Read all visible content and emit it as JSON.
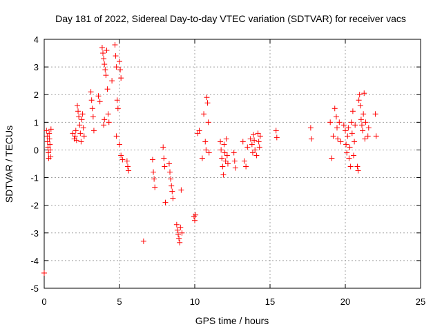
{
  "chart_data": {
    "type": "scatter",
    "title": "Day 181 of 2022, Sidereal Day-to-day VTEC variation (SDTVAR) for receiver vacs",
    "xlabel": "GPS time / hours",
    "ylabel": "SDTVAR / TECUs",
    "xlim": [
      0,
      25
    ],
    "ylim": [
      -5,
      4
    ],
    "xticks": [
      0,
      5,
      10,
      15,
      20,
      25
    ],
    "yticks": [
      -5,
      -4,
      -3,
      -2,
      -1,
      0,
      1,
      2,
      3,
      4
    ],
    "grid": true,
    "marker": "+",
    "series": [
      {
        "name": "SDTVAR",
        "color": "#ff0000",
        "points": [
          [
            0.0,
            -4.45
          ],
          [
            0.15,
            0.7
          ],
          [
            0.2,
            0.5
          ],
          [
            0.22,
            0.3
          ],
          [
            0.25,
            0.1
          ],
          [
            0.28,
            -0.1
          ],
          [
            0.3,
            -0.3
          ],
          [
            0.33,
            0.6
          ],
          [
            0.35,
            0.4
          ],
          [
            0.38,
            0.2
          ],
          [
            0.4,
            0.0
          ],
          [
            0.42,
            -0.25
          ],
          [
            0.45,
            0.75
          ],
          [
            1.9,
            0.6
          ],
          [
            2.0,
            0.4
          ],
          [
            2.05,
            0.5
          ],
          [
            2.1,
            0.7
          ],
          [
            2.15,
            0.35
          ],
          [
            2.2,
            1.6
          ],
          [
            2.25,
            1.4
          ],
          [
            2.3,
            1.2
          ],
          [
            2.35,
            0.9
          ],
          [
            2.4,
            0.6
          ],
          [
            2.45,
            0.3
          ],
          [
            2.5,
            1.1
          ],
          [
            2.55,
            1.3
          ],
          [
            2.6,
            0.8
          ],
          [
            2.65,
            0.5
          ],
          [
            3.1,
            2.1
          ],
          [
            3.15,
            1.8
          ],
          [
            3.2,
            1.5
          ],
          [
            3.25,
            1.2
          ],
          [
            3.3,
            0.7
          ],
          [
            3.6,
            1.95
          ],
          [
            3.7,
            1.75
          ],
          [
            3.85,
            3.7
          ],
          [
            3.9,
            3.5
          ],
          [
            3.95,
            3.3
          ],
          [
            4.0,
            3.1
          ],
          [
            4.05,
            2.9
          ],
          [
            4.1,
            2.7
          ],
          [
            4.15,
            3.6
          ],
          [
            4.2,
            2.2
          ],
          [
            4.25,
            1.3
          ],
          [
            4.3,
            1.0
          ],
          [
            3.95,
            0.9
          ],
          [
            4.0,
            1.1
          ],
          [
            4.5,
            2.5
          ],
          [
            4.7,
            3.8
          ],
          [
            4.75,
            3.4
          ],
          [
            4.8,
            3.0
          ],
          [
            4.85,
            1.8
          ],
          [
            4.9,
            1.5
          ],
          [
            5.0,
            3.2
          ],
          [
            5.05,
            2.9
          ],
          [
            5.1,
            2.6
          ],
          [
            4.8,
            0.5
          ],
          [
            5.0,
            0.2
          ],
          [
            5.1,
            -0.2
          ],
          [
            5.2,
            -0.35
          ],
          [
            5.5,
            -0.4
          ],
          [
            5.55,
            -0.6
          ],
          [
            5.6,
            -0.75
          ],
          [
            7.2,
            -0.35
          ],
          [
            7.25,
            -0.8
          ],
          [
            7.3,
            -1.05
          ],
          [
            7.35,
            -1.35
          ],
          [
            7.9,
            0.1
          ],
          [
            7.95,
            -0.3
          ],
          [
            8.0,
            -0.6
          ],
          [
            8.05,
            -1.9
          ],
          [
            8.3,
            -0.5
          ],
          [
            8.35,
            -0.8
          ],
          [
            8.4,
            -1.05
          ],
          [
            8.45,
            -1.3
          ],
          [
            8.5,
            -1.5
          ],
          [
            8.55,
            -1.75
          ],
          [
            6.6,
            -3.3
          ],
          [
            8.8,
            -2.7
          ],
          [
            8.85,
            -2.9
          ],
          [
            8.9,
            -3.05
          ],
          [
            8.95,
            -3.2
          ],
          [
            9.0,
            -3.35
          ],
          [
            9.05,
            -2.8
          ],
          [
            9.1,
            -1.45
          ],
          [
            9.15,
            -3.0
          ],
          [
            9.95,
            -2.4
          ],
          [
            10.0,
            -2.55
          ],
          [
            10.05,
            -2.35
          ],
          [
            10.2,
            0.6
          ],
          [
            10.3,
            0.7
          ],
          [
            10.5,
            -0.3
          ],
          [
            10.6,
            1.3
          ],
          [
            10.7,
            0.3
          ],
          [
            10.75,
            0.0
          ],
          [
            10.8,
            1.9
          ],
          [
            10.85,
            1.7
          ],
          [
            10.9,
            1.0
          ],
          [
            10.95,
            -0.1
          ],
          [
            11.7,
            0.3
          ],
          [
            11.75,
            0.0
          ],
          [
            11.8,
            -0.3
          ],
          [
            11.85,
            -0.6
          ],
          [
            11.9,
            -0.9
          ],
          [
            11.95,
            0.2
          ],
          [
            12.0,
            -0.1
          ],
          [
            12.05,
            -0.4
          ],
          [
            12.1,
            0.4
          ],
          [
            12.15,
            -0.2
          ],
          [
            12.2,
            -0.5
          ],
          [
            12.6,
            -0.1
          ],
          [
            12.65,
            -0.4
          ],
          [
            12.7,
            -0.65
          ],
          [
            13.2,
            0.3
          ],
          [
            13.3,
            -0.4
          ],
          [
            13.4,
            -0.6
          ],
          [
            13.5,
            0.1
          ],
          [
            13.7,
            0.4
          ],
          [
            13.8,
            0.2
          ],
          [
            13.85,
            -0.1
          ],
          [
            13.9,
            0.55
          ],
          [
            13.95,
            0.35
          ],
          [
            14.0,
            0.0
          ],
          [
            14.1,
            -0.2
          ],
          [
            14.2,
            0.6
          ],
          [
            14.25,
            0.3
          ],
          [
            14.3,
            0.1
          ],
          [
            14.35,
            0.5
          ],
          [
            15.4,
            0.7
          ],
          [
            15.45,
            0.45
          ],
          [
            17.7,
            0.8
          ],
          [
            17.75,
            0.4
          ],
          [
            19.0,
            1.0
          ],
          [
            19.1,
            -0.3
          ],
          [
            19.2,
            0.5
          ],
          [
            19.3,
            1.5
          ],
          [
            19.4,
            1.2
          ],
          [
            19.45,
            0.8
          ],
          [
            19.5,
            0.4
          ],
          [
            19.6,
            1.0
          ],
          [
            19.7,
            0.3
          ],
          [
            19.9,
            0.9
          ],
          [
            20.0,
            0.7
          ],
          [
            20.05,
            0.2
          ],
          [
            20.1,
            -0.1
          ],
          [
            20.15,
            0.5
          ],
          [
            20.2,
            0.8
          ],
          [
            20.25,
            -0.3
          ],
          [
            20.3,
            0.1
          ],
          [
            20.35,
            -0.6
          ],
          [
            20.4,
            1.0
          ],
          [
            20.45,
            0.6
          ],
          [
            20.5,
            1.4
          ],
          [
            20.55,
            -0.2
          ],
          [
            20.6,
            0.3
          ],
          [
            20.65,
            0.9
          ],
          [
            20.8,
            -0.6
          ],
          [
            20.85,
            -0.75
          ],
          [
            20.9,
            1.8
          ],
          [
            20.95,
            2.0
          ],
          [
            21.0,
            1.6
          ],
          [
            21.05,
            1.1
          ],
          [
            21.1,
            0.9
          ],
          [
            21.15,
            0.7
          ],
          [
            21.2,
            1.3
          ],
          [
            21.25,
            2.05
          ],
          [
            21.3,
            0.4
          ],
          [
            21.35,
            1.0
          ],
          [
            21.5,
            0.5
          ],
          [
            21.55,
            0.8
          ],
          [
            22.0,
            1.3
          ],
          [
            22.05,
            0.5
          ]
        ]
      }
    ]
  }
}
